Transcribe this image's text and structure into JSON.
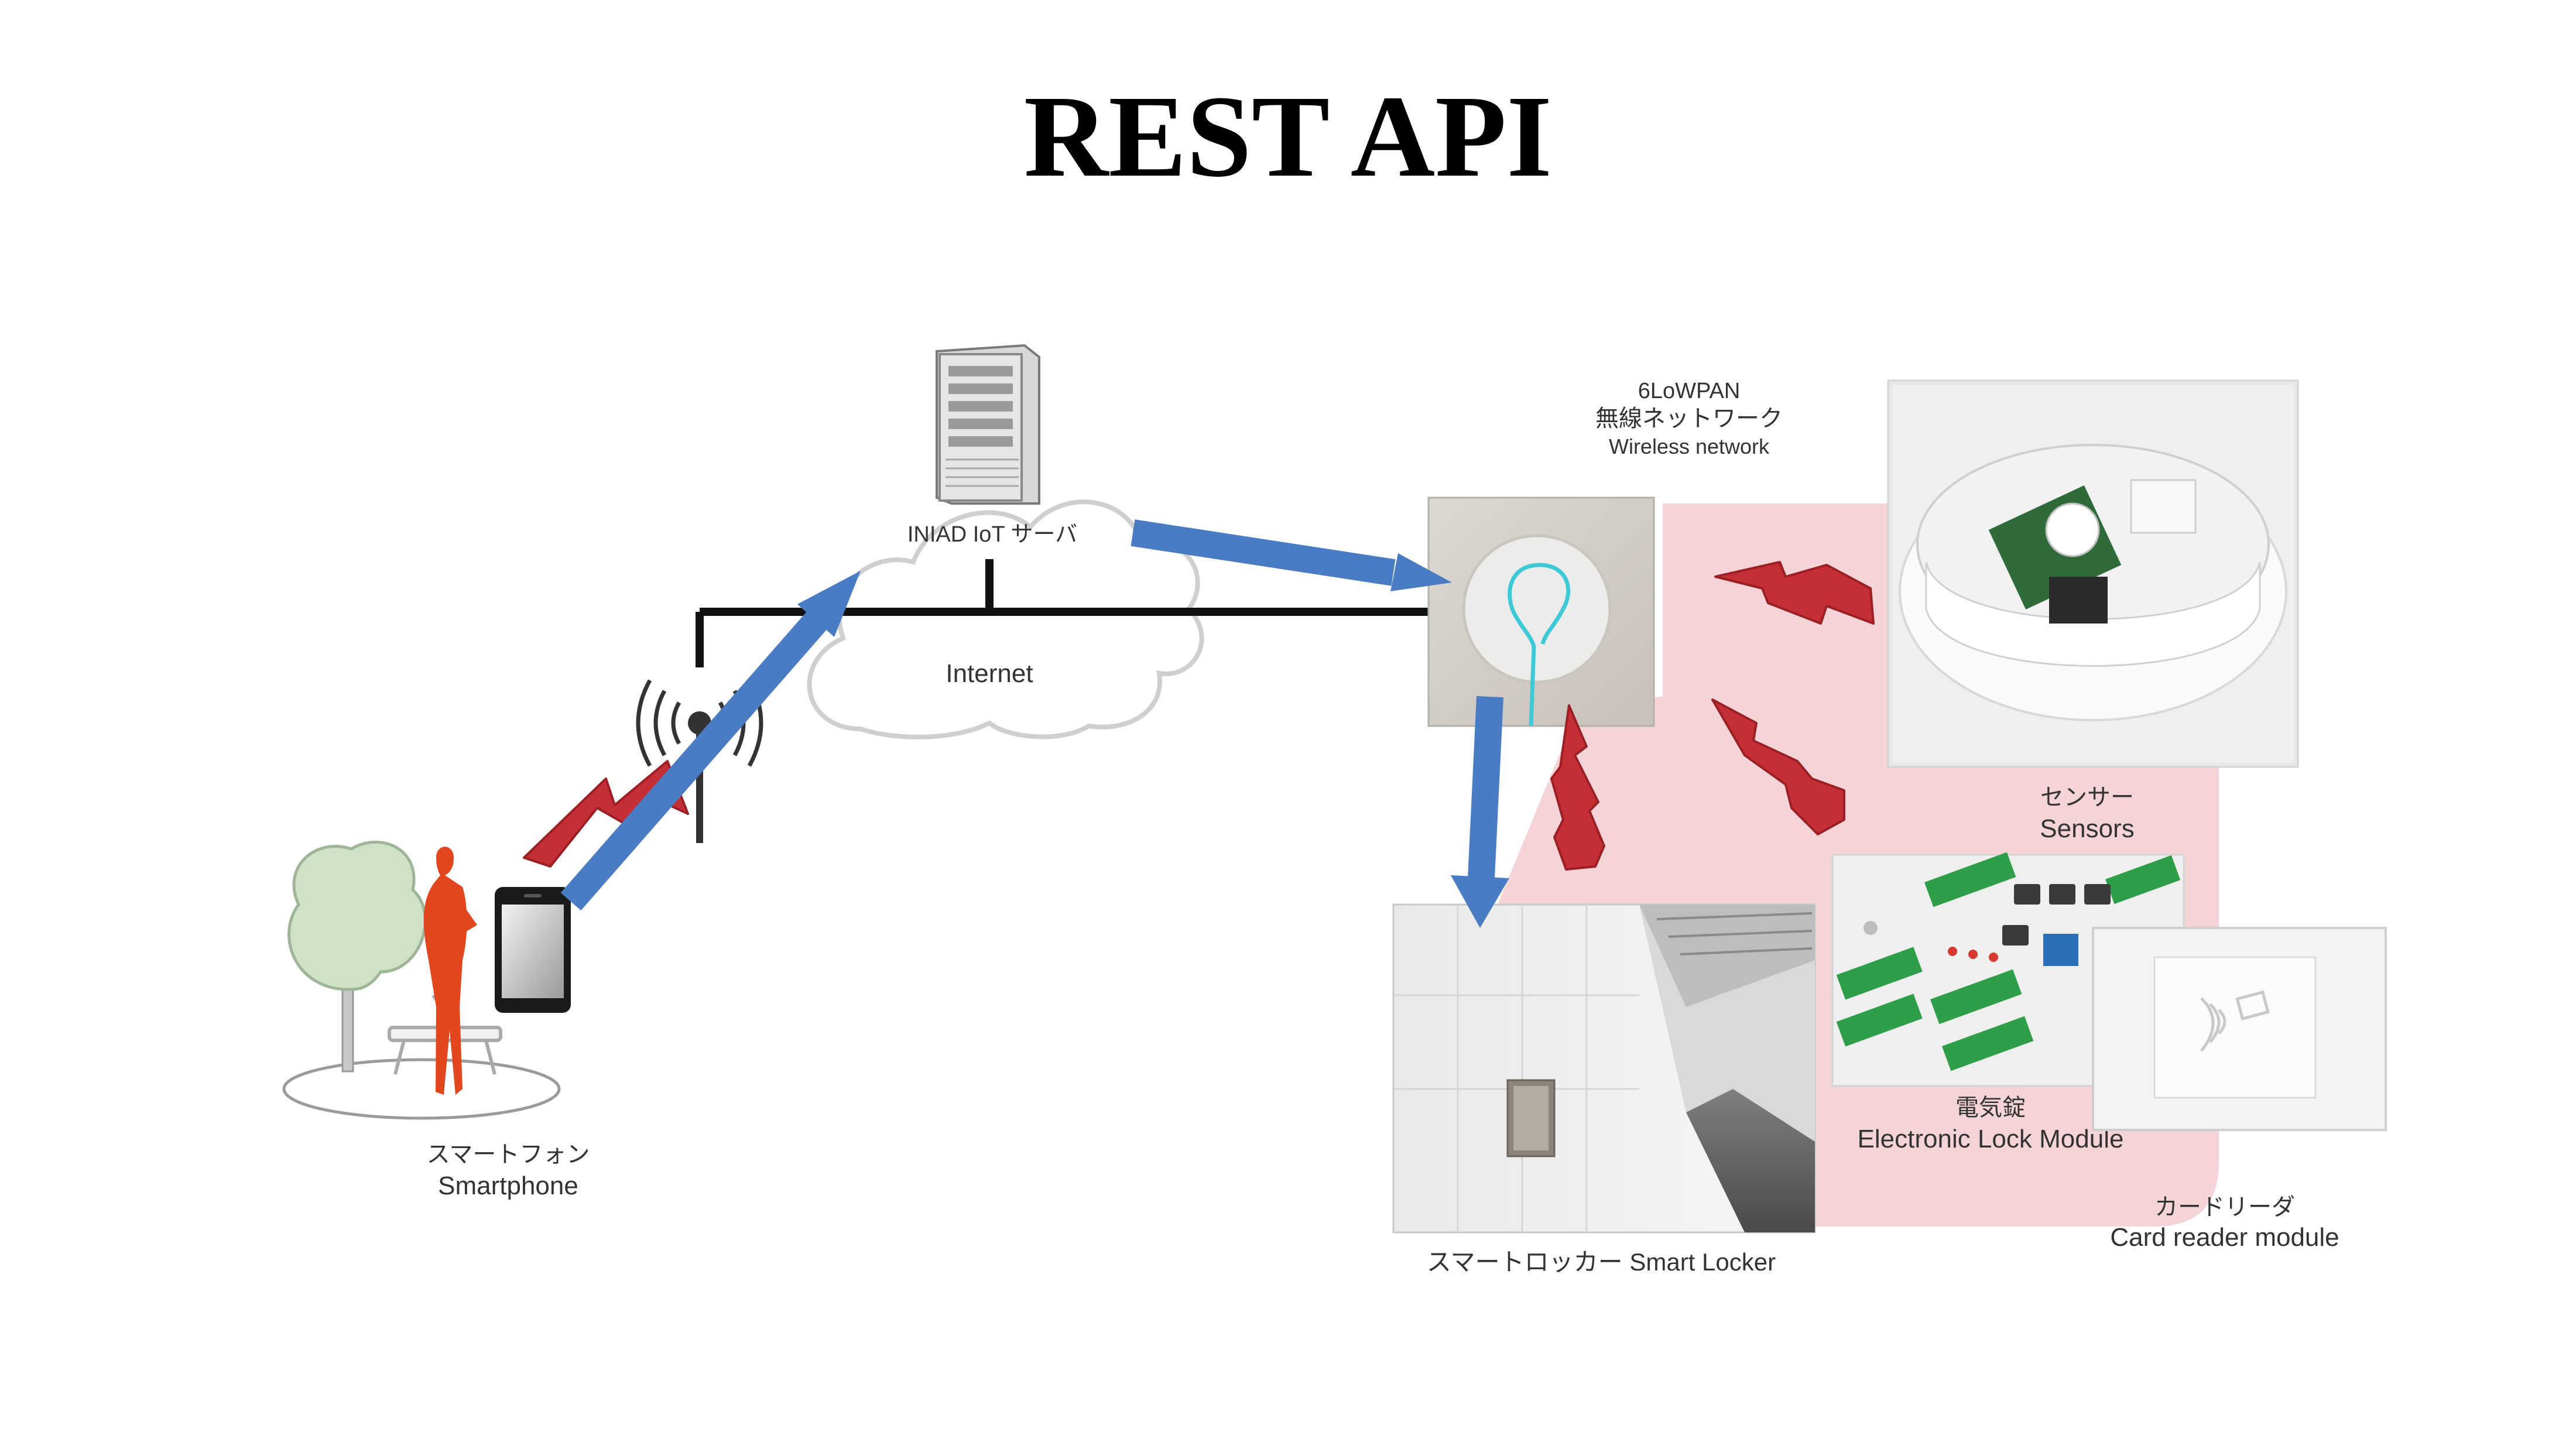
{
  "title": "REST API",
  "smartphone": {
    "label_ja": "スマートフォン",
    "label_en": "Smartphone"
  },
  "server": {
    "label": "INIAD IoT サーバ"
  },
  "cloud": {
    "label": "Internet"
  },
  "network": {
    "line1": "6LoWPAN",
    "line2": "無線ネットワーク",
    "line3": "Wireless network"
  },
  "sensors": {
    "label_ja": "センサー",
    "label_en": "Sensors"
  },
  "lock_module": {
    "label_ja": "電気錠",
    "label_en": "Electronic Lock Module"
  },
  "card_reader": {
    "label_ja": "カードリーダ",
    "label_en": "Card reader module"
  },
  "smart_locker": {
    "label": "スマートロッカー Smart Locker"
  },
  "colors": {
    "arrow": "#4a7cc4",
    "arrow_stroke": "#3565a8",
    "lightning": "#c42f35",
    "lightning_stroke": "#9c1f25",
    "wireless_zone": "#f4d4d6",
    "person": "#e1461e",
    "tree": "#cfe2c6",
    "hub_background": "#d3cec7",
    "hub_glow": "#3ec9d6"
  }
}
